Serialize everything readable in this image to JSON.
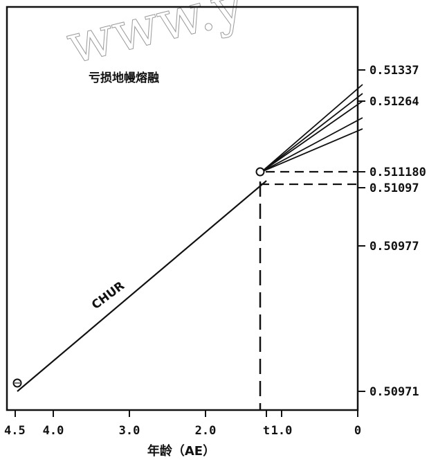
{
  "chart_data": {
    "type": "line",
    "title": "",
    "xlabel": "年龄（AE）",
    "ylabel": "",
    "watermark": "www.y",
    "x_ticks": [
      {
        "value": 4.5,
        "label": "4.5"
      },
      {
        "value": 4.0,
        "label": "4.0"
      },
      {
        "value": 3.0,
        "label": "3.0"
      },
      {
        "value": 2.0,
        "label": "2.0"
      },
      {
        "value": 1.2,
        "label": "t"
      },
      {
        "value": 1.0,
        "label": "1.0"
      },
      {
        "value": 0,
        "label": "0"
      }
    ],
    "y_labels": [
      "0.51337",
      "0.51264",
      "0.511180",
      "0.51097",
      "0.50977",
      "0.50971"
    ],
    "xlim": [
      4.5,
      0
    ],
    "series": [
      {
        "name": "CHUR",
        "points": [
          [
            4.5,
            0.50971
          ],
          [
            1.2,
            0.51097
          ]
        ]
      }
    ],
    "fan_lines_end_y": [
      "0.51337",
      "0.51264"
    ],
    "fan_line_count": 5,
    "annotations": [
      {
        "text": "亏损地幔熔融"
      },
      {
        "text": "CHUR"
      }
    ]
  }
}
